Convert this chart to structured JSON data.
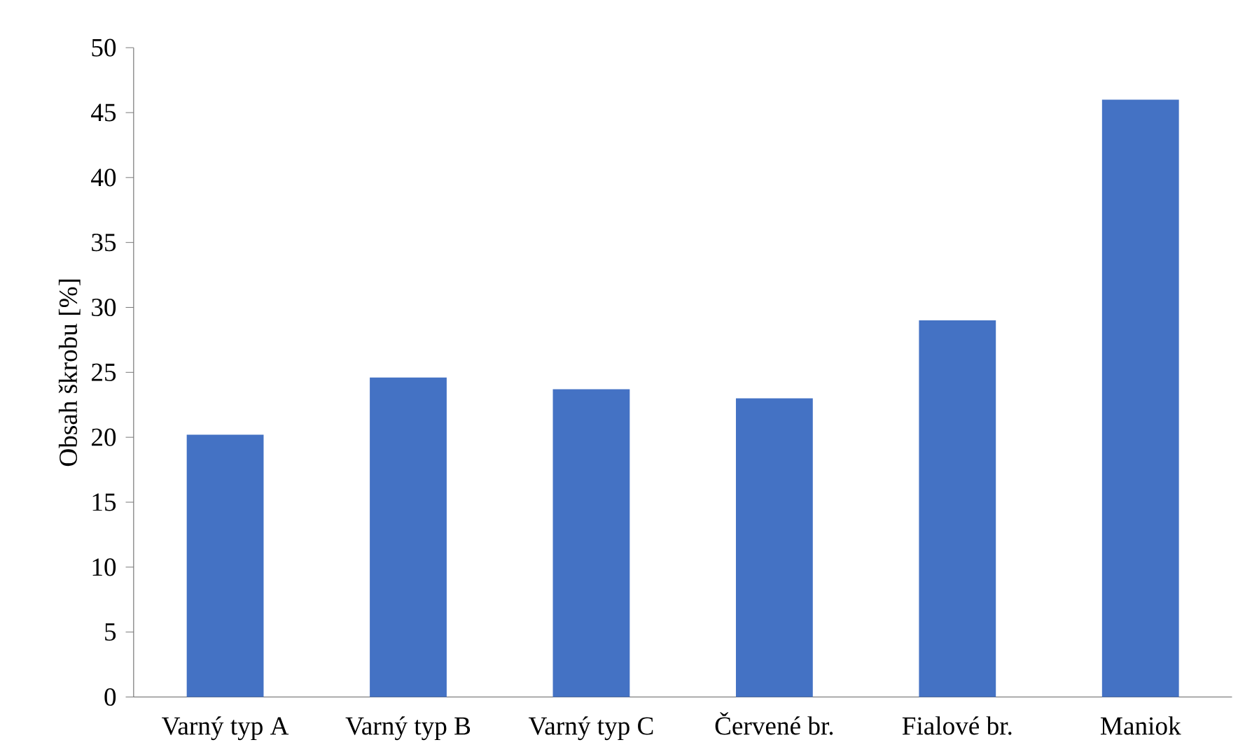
{
  "chart_data": {
    "type": "bar",
    "ylabel": "Obsah škrobu [%]",
    "categories": [
      "Varný typ A",
      "Varný typ B",
      "Varný typ C",
      "Červené br.",
      "Fialové br.",
      "Maniok"
    ],
    "values": [
      20.2,
      24.6,
      23.7,
      23.0,
      29.0,
      46.0
    ],
    "color": "#4472c4",
    "ylim": [
      0,
      50
    ],
    "yticks": [
      0,
      5,
      10,
      15,
      20,
      25,
      30,
      35,
      40,
      45,
      50
    ],
    "grid": false
  }
}
